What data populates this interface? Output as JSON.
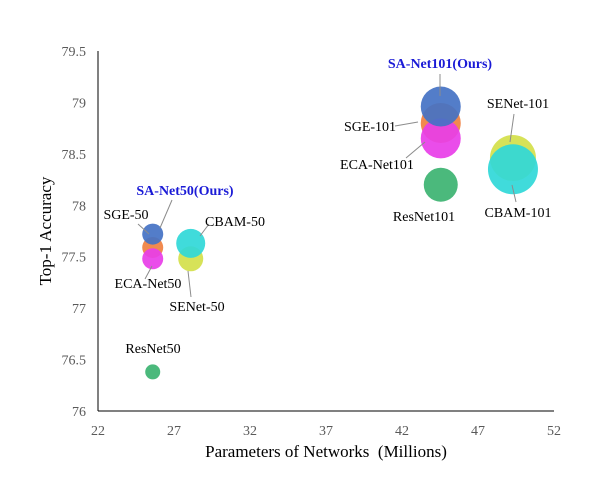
{
  "chart_data": {
    "type": "scatter",
    "xlabel": "Parameters of Networks  (Millions)",
    "ylabel": "Top-1 Accuracy",
    "xlim": [
      22,
      52
    ],
    "ylim": [
      76,
      79.5
    ],
    "xticks": [
      "22",
      "27",
      "32",
      "37",
      "42",
      "47",
      "52"
    ],
    "yticks": [
      "76",
      "76.5",
      "77",
      "77.5",
      "78",
      "78.5",
      "79",
      "79.5"
    ],
    "grid": false,
    "legend": "none",
    "bubble_size_encodes": "parameters",
    "points": [
      {
        "name": "ResNet50",
        "x": 25.6,
        "y": 76.38,
        "color": "#3cb371",
        "bold": false
      },
      {
        "name": "SGE-50",
        "x": 25.6,
        "y": 77.59,
        "color": "#f08040",
        "bold": false
      },
      {
        "name": "ECA-Net50",
        "x": 25.6,
        "y": 77.48,
        "color": "#e83ee8",
        "bold": false
      },
      {
        "name": "SA-Net50(Ours)",
        "x": 25.6,
        "y": 77.72,
        "color": "#4472c4",
        "bold": true
      },
      {
        "name": "SENet-50",
        "x": 28.1,
        "y": 77.48,
        "color": "#d4e04a",
        "bold": false
      },
      {
        "name": "CBAM-50",
        "x": 28.1,
        "y": 77.63,
        "color": "#30d8d8",
        "bold": false
      },
      {
        "name": "ResNet101",
        "x": 44.55,
        "y": 78.2,
        "color": "#3cb371",
        "bold": false
      },
      {
        "name": "SGE-101",
        "x": 44.55,
        "y": 78.8,
        "color": "#f08040",
        "bold": false
      },
      {
        "name": "ECA-Net101",
        "x": 44.55,
        "y": 78.65,
        "color": "#e83ee8",
        "bold": false
      },
      {
        "name": "SA-Net101(Ours)",
        "x": 44.55,
        "y": 78.96,
        "color": "#4472c4",
        "bold": true
      },
      {
        "name": "SENet-101",
        "x": 49.3,
        "y": 78.46,
        "color": "#d4e04a",
        "bold": false
      },
      {
        "name": "CBAM-101",
        "x": 49.3,
        "y": 78.35,
        "color": "#30d8d8",
        "bold": false
      }
    ]
  }
}
